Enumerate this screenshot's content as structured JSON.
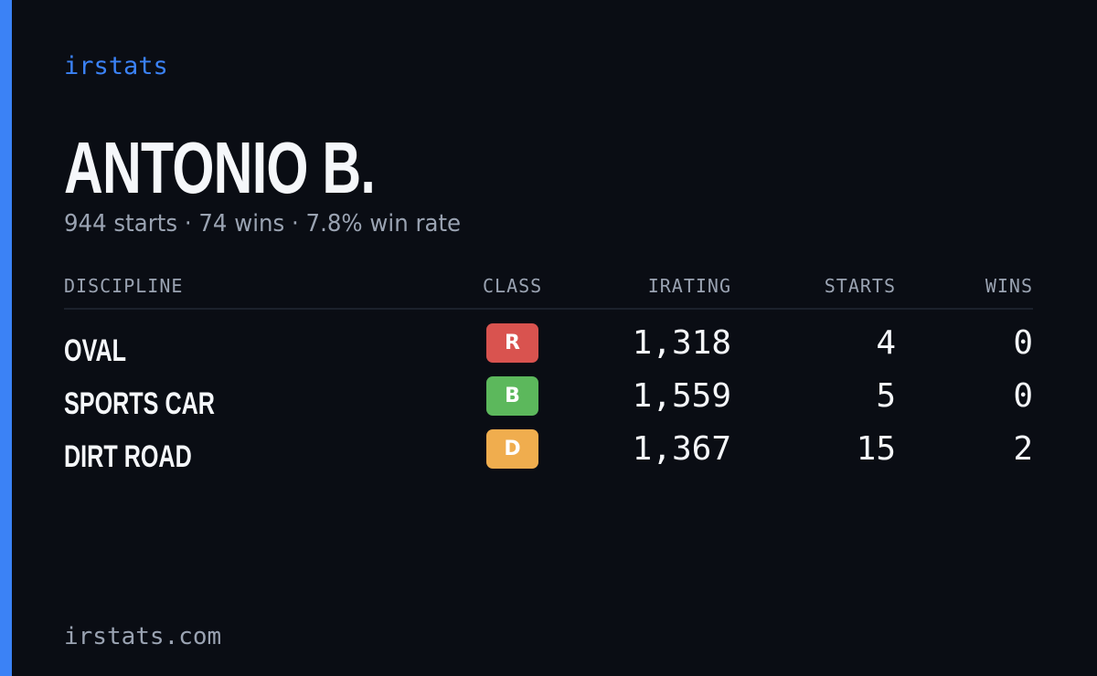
{
  "brand": "irstats",
  "driver": {
    "name": "ANTONIO B.",
    "summary": "944 starts · 74 wins · 7.8% win rate"
  },
  "table": {
    "headers": {
      "discipline": "DISCIPLINE",
      "class": "CLASS",
      "irating": "IRATING",
      "starts": "STARTS",
      "wins": "WINS"
    },
    "rows": [
      {
        "discipline": "OVAL",
        "class": "R",
        "class_color": "#d9534f",
        "irating": "1,318",
        "starts": "4",
        "wins": "0"
      },
      {
        "discipline": "SPORTS CAR",
        "class": "B",
        "class_color": "#5cb85c",
        "irating": "1,559",
        "starts": "5",
        "wins": "0"
      },
      {
        "discipline": "DIRT ROAD",
        "class": "D",
        "class_color": "#f0ad4e",
        "irating": "1,367",
        "starts": "15",
        "wins": "2"
      }
    ]
  },
  "footer": "irstats.com",
  "colors": {
    "accent": "#3b82f6",
    "background": "#0a0d14"
  }
}
